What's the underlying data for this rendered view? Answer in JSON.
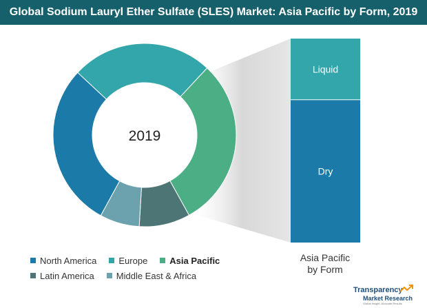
{
  "title": "Global Sodium Lauryl Ether Sulfate (SLES) Market: Asia Pacific by Form, 2019",
  "chart_data": [
    {
      "type": "pie",
      "variant": "donut",
      "center_label": "2019",
      "categories": [
        "North America",
        "Europe",
        "Asia Pacific",
        "Latin America",
        "Middle East & Africa"
      ],
      "values": [
        29,
        25,
        30,
        9,
        7
      ],
      "colors": [
        "#1c7aa8",
        "#32a6aa",
        "#4cae85",
        "#4d7575",
        "#6ba2ad"
      ],
      "legend": "bottom",
      "highlighted": "Asia Pacific"
    },
    {
      "type": "bar",
      "stacked": true,
      "categories": [
        "Asia Pacific by Form"
      ],
      "series": [
        {
          "name": "Dry",
          "values": [
            70
          ],
          "color": "#1c7aa8"
        },
        {
          "name": "Liquid",
          "values": [
            30
          ],
          "color": "#32a6aa"
        }
      ],
      "ylim": [
        0,
        100
      ],
      "caption_lines": [
        "Asia Pacific",
        "by Form"
      ]
    }
  ],
  "legend_rows": [
    [
      {
        "label": "North America",
        "color": "#1c7aa8",
        "bold": false
      },
      {
        "label": "Europe",
        "color": "#32a6aa",
        "bold": false
      },
      {
        "label": "Asia Pacific",
        "color": "#4cae85",
        "bold": true
      }
    ],
    [
      {
        "label": "Latin America",
        "color": "#4d7575",
        "bold": false
      },
      {
        "label": "Middle East & Africa",
        "color": "#6ba2ad",
        "bold": false
      }
    ]
  ],
  "logo": {
    "line1": "Transparency",
    "line2": "Market Research",
    "line3": "Global Insight. Accurate Results"
  }
}
